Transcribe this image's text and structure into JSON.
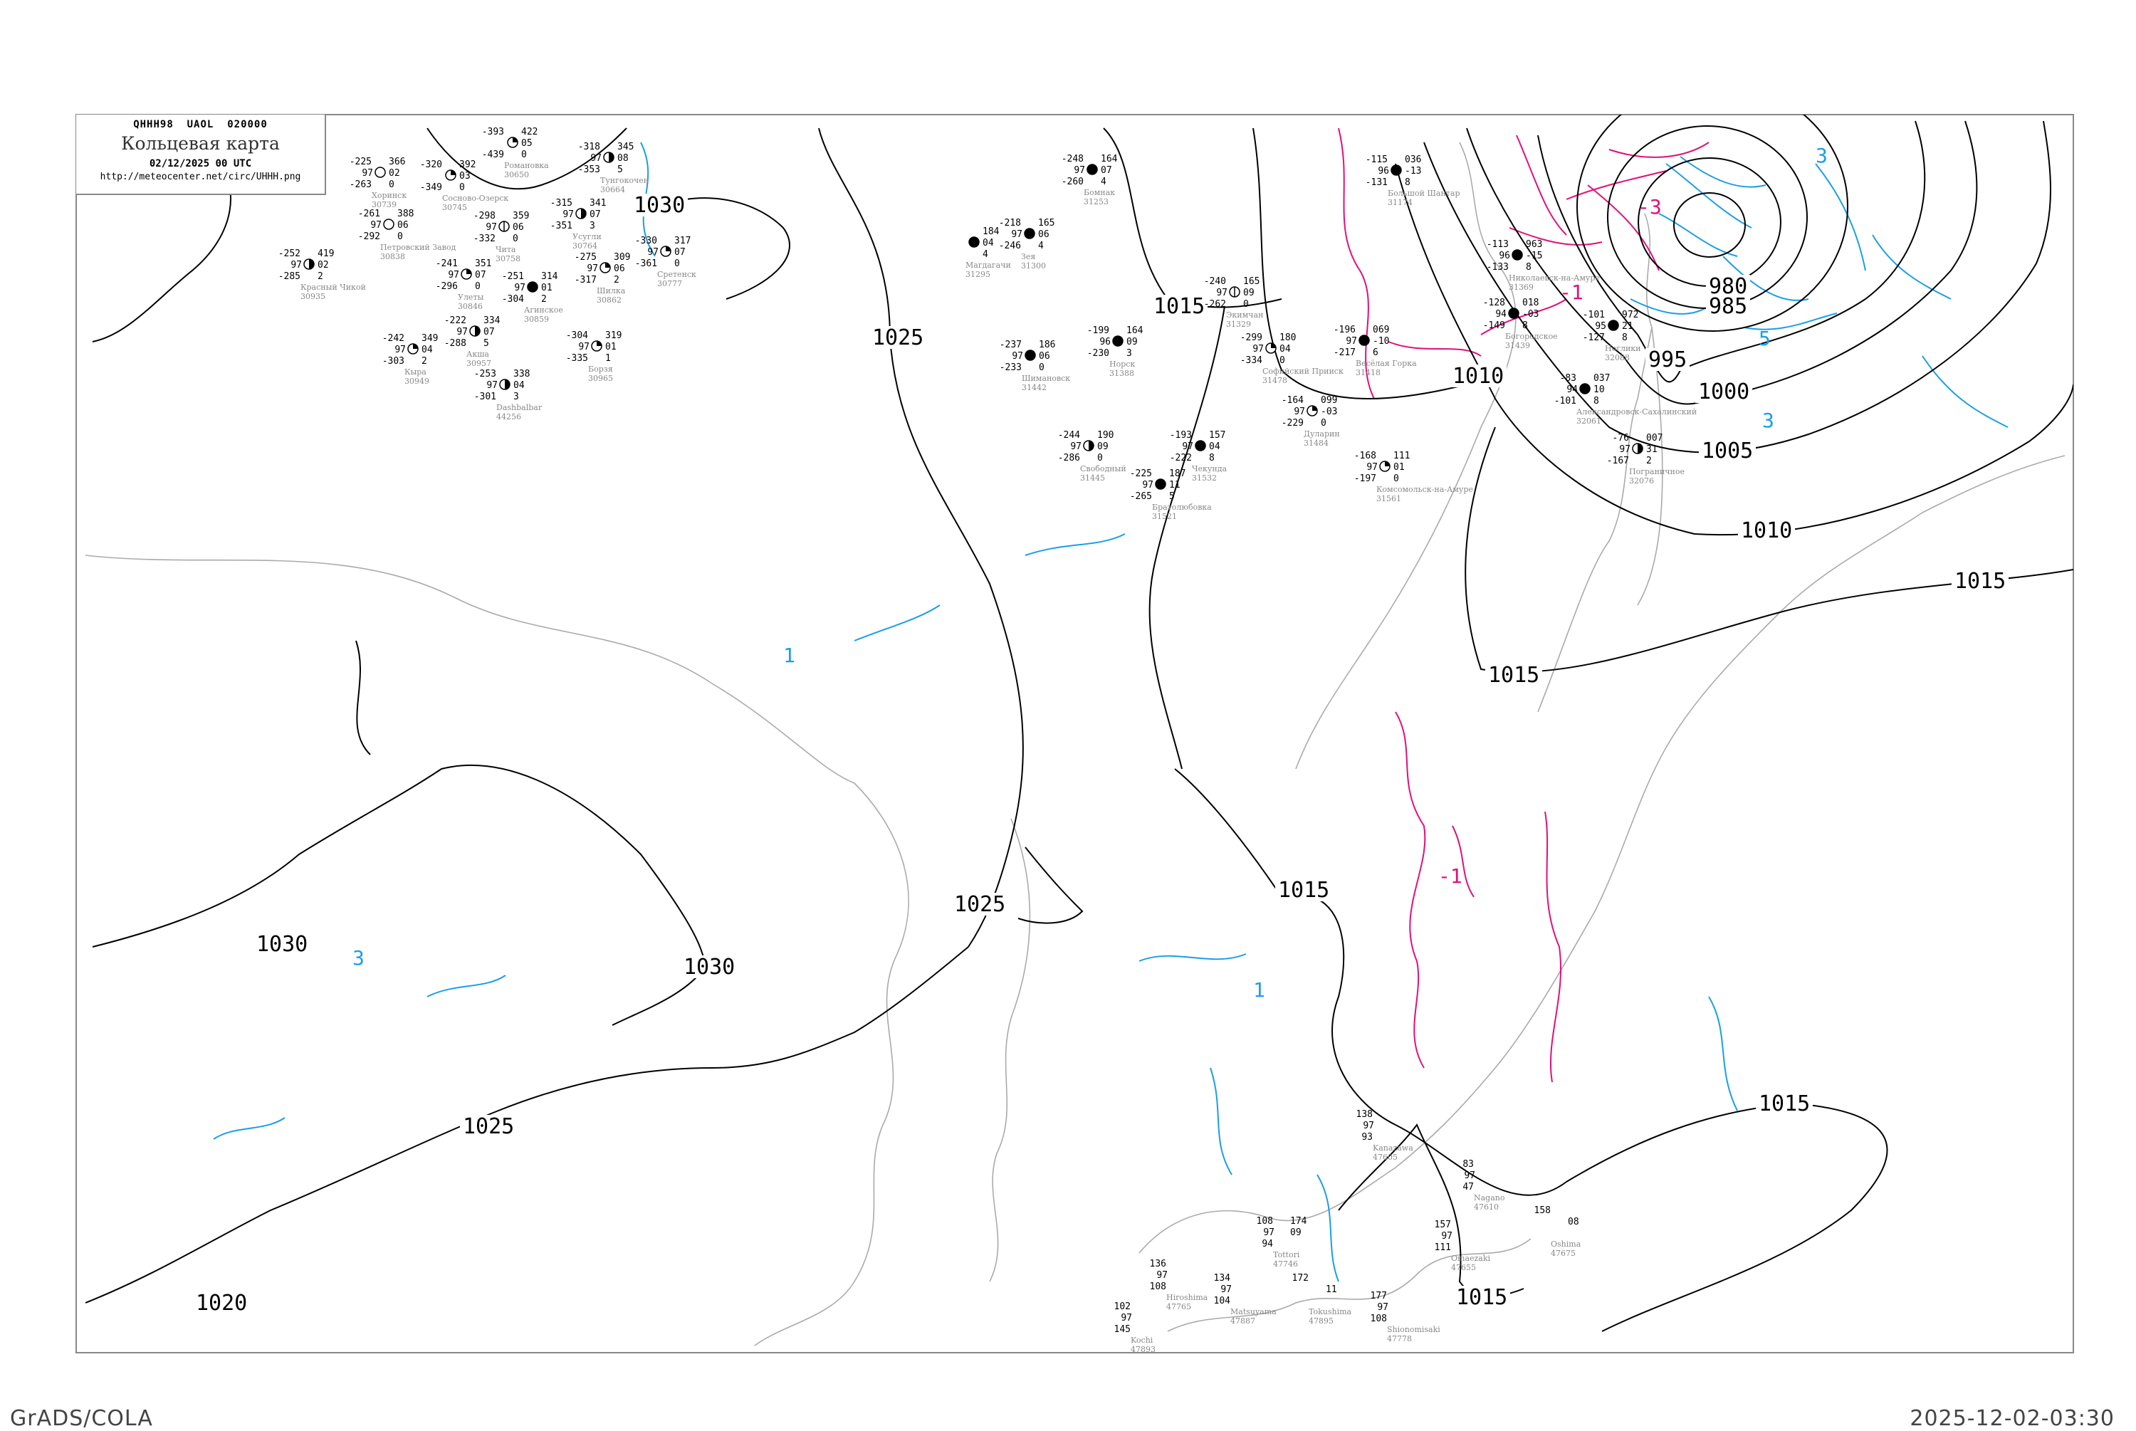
{
  "header": {
    "code_line": "QHHH98  UAOL  020000",
    "title": "Кольцевая карта",
    "date": "02/12/2025 00 UTC",
    "url": "http://meteocenter.net/circ/UHHH.png"
  },
  "footer": {
    "left": "GrADS/COLA",
    "right": "2025-12-02-03:30"
  },
  "colors": {
    "isobar": "#000000",
    "pressure_fall": "#e0107a",
    "pressure_rise": "#1a9ee8",
    "coastline": "#aaaaaa",
    "frame": "#888888"
  },
  "isobar_labels": [
    "980",
    "985",
    "995",
    "1000",
    "1005",
    "1010",
    "1010",
    "1015",
    "1015",
    "1015",
    "1015",
    "1015",
    "1015",
    "1020",
    "1025",
    "1025",
    "1025",
    "1030",
    "1030",
    "1030"
  ],
  "tendency_labels": {
    "fall": [
      "-3",
      "-1",
      "-1"
    ],
    "rise": [
      "3",
      "5",
      "3",
      "1",
      "1",
      "3"
    ]
  },
  "stations": [
    {
      "name": "Хоринск",
      "id": "30739",
      "t": "-225",
      "vis": "97",
      "td": "-263",
      "p": "366",
      "tend": "02",
      "low": "0",
      "cover": 0
    },
    {
      "name": "Сосново-Озерск",
      "id": "30745",
      "t": "-320",
      "vis": "",
      "td": "-349",
      "p": "392",
      "tend": "03",
      "low": "0",
      "cover": 2
    },
    {
      "name": "Романовка",
      "id": "30650",
      "t": "-393",
      "vis": "",
      "td": "-439",
      "p": "422",
      "tend": "05",
      "low": "0",
      "cover": 2
    },
    {
      "name": "Чита",
      "id": "30758",
      "t": "-298",
      "vis": "97",
      "td": "-332",
      "p": "359",
      "tend": "06",
      "low": "0",
      "cover": 1
    },
    {
      "name": "Тунгокочен",
      "id": "30664",
      "t": "-318",
      "vis": "97",
      "td": "-353",
      "p": "345",
      "tend": "08",
      "low": "5",
      "cover": 6
    },
    {
      "name": "Улеты",
      "id": "30846",
      "t": "-241",
      "vis": "97",
      "td": "-296",
      "p": "351",
      "tend": "07",
      "low": "0",
      "cover": 2
    },
    {
      "name": "Агинское",
      "id": "30859",
      "t": "-251",
      "vis": "97",
      "td": "-304",
      "p": "314",
      "tend": "01",
      "low": "2",
      "cover": 8
    },
    {
      "name": "Акша",
      "id": "30957",
      "t": "-222",
      "vis": "97",
      "td": "-288",
      "p": "334",
      "tend": "07",
      "low": "5",
      "cover": 4
    },
    {
      "name": "Кыра",
      "id": "30949",
      "t": "-242",
      "vis": "97",
      "td": "-303",
      "p": "349",
      "tend": "04",
      "low": "2",
      "cover": 2
    },
    {
      "name": "Шилка",
      "id": "30862",
      "t": "-275",
      "vis": "97",
      "td": "-317",
      "p": "309",
      "tend": "06",
      "low": "2",
      "cover": 2
    },
    {
      "name": "Сретенск",
      "id": "30777",
      "t": "-330",
      "vis": "97",
      "td": "-361",
      "p": "317",
      "tend": "07",
      "low": "0",
      "cover": 2
    },
    {
      "name": "Красный Чикой",
      "id": "30935",
      "t": "-252",
      "vis": "97",
      "td": "-285",
      "p": "419",
      "tend": "02",
      "low": "2",
      "cover": 4
    },
    {
      "name": "Петровский Завод",
      "id": "30838",
      "t": "-261",
      "vis": "97",
      "td": "-292",
      "p": "388",
      "tend": "06",
      "low": "0",
      "cover": 0
    },
    {
      "name": "Усугли",
      "id": "30764",
      "t": "-315",
      "vis": "97",
      "td": "-351",
      "p": "341",
      "tend": "07",
      "low": "3",
      "cover": 4
    },
    {
      "name": "Борзя",
      "id": "30965",
      "t": "-304",
      "vis": "97",
      "td": "-335",
      "p": "319",
      "tend": "01",
      "low": "1",
      "cover": 2
    },
    {
      "name": "Dashbalbar",
      "id": "44256",
      "t": "-253",
      "vis": "97",
      "td": "-301",
      "p": "338",
      "tend": "04",
      "low": "3",
      "cover": 4
    },
    {
      "name": "Бомнак",
      "id": "31253",
      "t": "-248",
      "vis": "97",
      "td": "-260",
      "p": "164",
      "tend": "07",
      "low": "4",
      "cover": 8
    },
    {
      "name": "Зея",
      "id": "31300",
      "t": "-218",
      "vis": "97",
      "td": "-246",
      "p": "165",
      "tend": "06",
      "low": "4",
      "cover": 8
    },
    {
      "name": "Магдагачи",
      "id": "31295",
      "t": "",
      "vis": "",
      "td": "",
      "p": "184",
      "tend": "04",
      "low": "4",
      "cover": 8
    },
    {
      "name": "Норск",
      "id": "31388",
      "t": "-199",
      "vis": "96",
      "td": "-230",
      "p": "164",
      "tend": "09",
      "low": "3",
      "cover": 8
    },
    {
      "name": "Экимчан",
      "id": "31329",
      "t": "-240",
      "vis": "97",
      "td": "-262",
      "p": "165",
      "tend": "09",
      "low": "0",
      "cover": 1
    },
    {
      "name": "Софийский Прииск",
      "id": "31478",
      "t": "-299",
      "vis": "97",
      "td": "-334",
      "p": "180",
      "tend": "04",
      "low": "0",
      "cover": 2
    },
    {
      "name": "Шимановск",
      "id": "31442",
      "t": "-237",
      "vis": "97",
      "td": "-233",
      "p": "186",
      "tend": "06",
      "low": "0",
      "cover": 8
    },
    {
      "name": "Свободный",
      "id": "31445",
      "t": "-244",
      "vis": "97",
      "td": "-286",
      "p": "190",
      "tend": "09",
      "low": "0",
      "cover": 4
    },
    {
      "name": "Братолюбовка",
      "id": "31521",
      "t": "-225",
      "vis": "97",
      "td": "-265",
      "p": "187",
      "tend": "11",
      "low": "5",
      "cover": 8
    },
    {
      "name": "Чекунда",
      "id": "31532",
      "t": "-193",
      "vis": "97",
      "td": "-222",
      "p": "157",
      "tend": "04",
      "low": "8",
      "cover": 8
    },
    {
      "name": "Весёлая Горка",
      "id": "31418",
      "t": "-196",
      "vis": "97",
      "td": "-217",
      "p": "069",
      "tend": "-10",
      "low": "6",
      "cover": 8
    },
    {
      "name": "Дуларин",
      "id": "31484",
      "t": "-164",
      "vis": "97",
      "td": "-229",
      "p": "099",
      "tend": "-03",
      "low": "0",
      "cover": 2
    },
    {
      "name": "Комсомольск-на-Амуре",
      "id": "31561",
      "t": "-168",
      "vis": "97",
      "td": "-197",
      "p": "111",
      "tend": "01",
      "low": "0",
      "cover": 2
    },
    {
      "name": "Большой Шантар",
      "id": "31174",
      "t": "-115",
      "vis": "96",
      "td": "-131",
      "p": "036",
      "tend": "-13",
      "low": "8",
      "cover": 8
    },
    {
      "name": "Николаевск-на-Амуре",
      "id": "31369",
      "t": "-113",
      "vis": "96",
      "td": "-133",
      "p": "963",
      "tend": "-15",
      "low": "8",
      "cover": 8
    },
    {
      "name": "Богородское",
      "id": "31439",
      "t": "-128",
      "vis": "94",
      "td": "-149",
      "p": "018",
      "tend": "-03",
      "low": "8",
      "cover": 8
    },
    {
      "name": "Ноглики",
      "id": "32088",
      "t": "-101",
      "vis": "95",
      "td": "-127",
      "p": "972",
      "tend": "21",
      "low": "8",
      "cover": 8
    },
    {
      "name": "Александровск-Сахалинский",
      "id": "32061",
      "t": "-83",
      "vis": "94",
      "td": "-101",
      "p": "037",
      "tend": "10",
      "low": "8",
      "cover": 8
    },
    {
      "name": "Пограничное",
      "id": "32076",
      "t": "-76",
      "vis": "97",
      "td": "-167",
      "p": "007",
      "tend": "31",
      "low": "2",
      "cover": 4
    },
    {
      "name": "Kanazawa",
      "id": "47605",
      "t": "138",
      "vis": "97",
      "td": "93",
      "p": "",
      "tend": "",
      "low": "",
      "cover": -1
    },
    {
      "name": "Tottori",
      "id": "47746",
      "t": "108",
      "vis": "97",
      "td": "94",
      "p": "174",
      "tend": "09",
      "low": "",
      "cover": -1
    },
    {
      "name": "Nagano",
      "id": "47610",
      "t": "83",
      "vis": "97",
      "td": "47",
      "p": "",
      "tend": "",
      "low": "",
      "cover": -1
    },
    {
      "name": "Tokushima",
      "id": "47895",
      "t": "172",
      "vis": "",
      "td": "",
      "p": "",
      "tend": "11",
      "low": "",
      "cover": -1
    },
    {
      "name": "Hiroshima",
      "id": "47765",
      "t": "136",
      "vis": "97",
      "td": "108",
      "p": "",
      "tend": "",
      "low": "",
      "cover": -1
    },
    {
      "name": "Matsuyama",
      "id": "47887",
      "t": "134",
      "vis": "97",
      "td": "104",
      "p": "",
      "tend": "",
      "low": "",
      "cover": -1
    },
    {
      "name": "Kochi",
      "id": "47893",
      "t": "102",
      "vis": "97",
      "td": "145",
      "p": "",
      "tend": "",
      "low": "",
      "cover": -1
    },
    {
      "name": "Omaezaki",
      "id": "47655",
      "t": "157",
      "vis": "97",
      "td": "111",
      "p": "",
      "tend": "",
      "low": "",
      "cover": -1
    },
    {
      "name": "Oshima",
      "id": "47675",
      "t": "158",
      "vis": "",
      "td": "",
      "p": "",
      "tend": "08",
      "low": "",
      "cover": -1
    },
    {
      "name": "Shionomisaki",
      "id": "47778",
      "t": "177",
      "vis": "97",
      "td": "108",
      "p": "",
      "tend": "",
      "low": "",
      "cover": -1
    }
  ]
}
